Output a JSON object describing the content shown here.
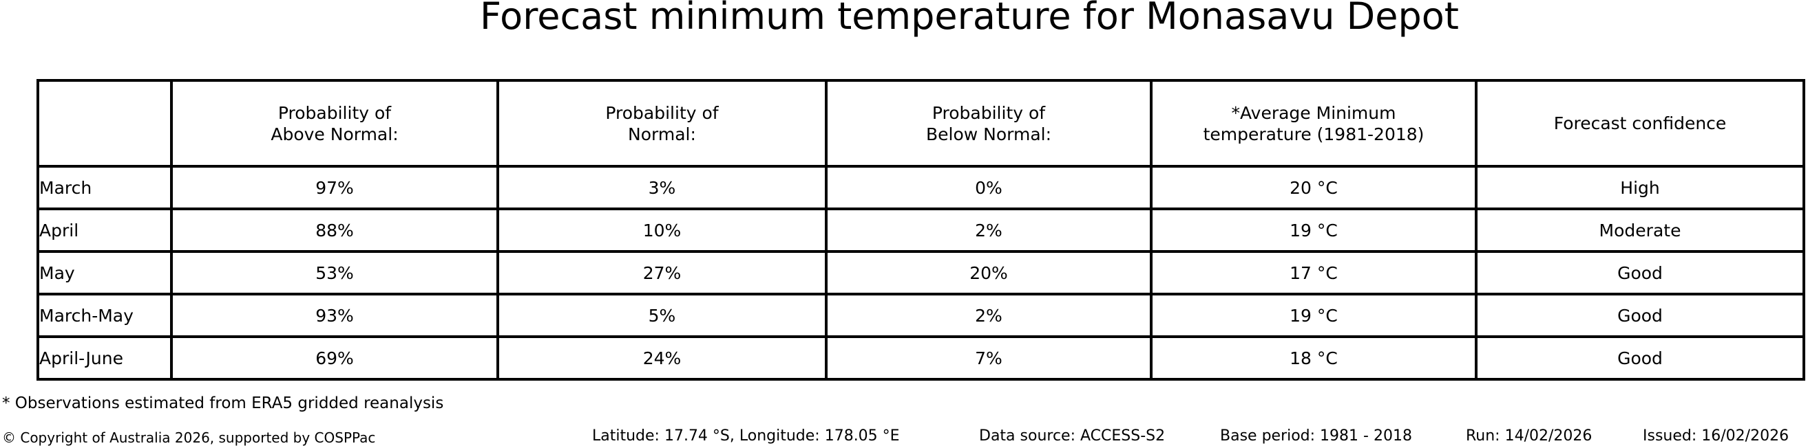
{
  "chart_data": {
    "type": "table",
    "title": "Forecast minimum temperature for Monasavu Depot",
    "columns": [
      "Probability of\nAbove Normal:",
      "Probability of\nNormal:",
      "Probability of\nBelow Normal:",
      "*Average Minimum\ntemperature (1981-2018)",
      "Forecast confidence"
    ],
    "row_labels": [
      "March",
      "April",
      "May",
      "March-May",
      "April-June"
    ],
    "rows": [
      {
        "label": "March",
        "above": "97%",
        "normal": "3%",
        "below": "0%",
        "avg_min_temp": "20 °C",
        "confidence": "High"
      },
      {
        "label": "April",
        "above": "88%",
        "normal": "10%",
        "below": "2%",
        "avg_min_temp": "19 °C",
        "confidence": "Moderate"
      },
      {
        "label": "May",
        "above": "53%",
        "normal": "27%",
        "below": "20%",
        "avg_min_temp": "17 °C",
        "confidence": "Good"
      },
      {
        "label": "March-May",
        "above": "93%",
        "normal": "5%",
        "below": "2%",
        "avg_min_temp": "19 °C",
        "confidence": "Good"
      },
      {
        "label": "April-June",
        "above": "69%",
        "normal": "24%",
        "below": "7%",
        "avg_min_temp": "18 °C",
        "confidence": "Good"
      }
    ],
    "layout": {
      "grid": "all-cell-borders",
      "corner_cell_empty": true,
      "text_color": "#000000",
      "border_color": "#000000",
      "background": "#ffffff"
    }
  },
  "footnote": "* Observations estimated from ERA5 gridded reanalysis",
  "footer": {
    "copyright": "© Copyright of Australia 2026, supported by COSPPac",
    "location": "Latitude: 17.74 °S, Longitude: 178.05 °E",
    "data_source": "Data source: ACCESS-S2",
    "base_period": "Base period: 1981 - 2018",
    "run": "Run: 14/02/2026",
    "issued": "Issued: 16/02/2026"
  }
}
